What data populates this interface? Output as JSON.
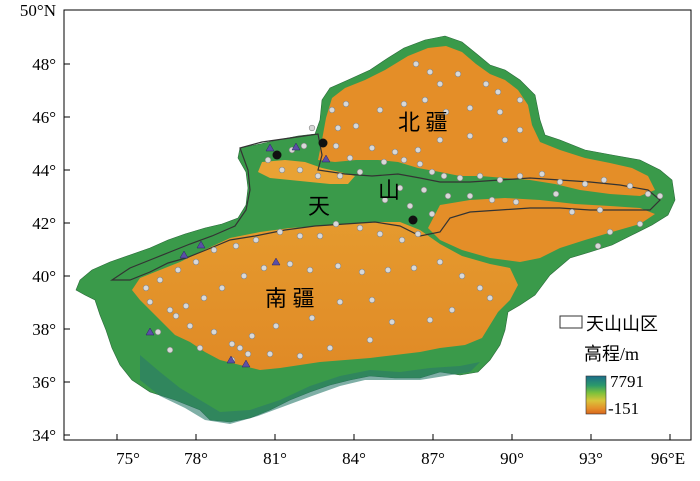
{
  "axes": {
    "lat_labels": [
      "50°N",
      "48°",
      "46°",
      "44°",
      "42°",
      "40°",
      "38°",
      "36°",
      "34°"
    ],
    "lon_labels": [
      "75°",
      "78°",
      "81°",
      "84°",
      "87°",
      "90°",
      "93°",
      "96°E"
    ],
    "lon_range": [
      73,
      96.6
    ],
    "lat_range": [
      33.5,
      50
    ]
  },
  "region_labels": {
    "north": "北 疆",
    "tian": "天",
    "shan": "山",
    "south": "南 疆"
  },
  "legend": {
    "boundary_label": "天山山区",
    "elevation_title": "高程/m",
    "max_label": "7791",
    "min_label": "-151",
    "ramp_colors": [
      "#1b7a8a",
      "#2c9a6a",
      "#6cbf3a",
      "#d8c23a",
      "#e0902c",
      "#d8661c"
    ]
  },
  "colors": {
    "land_low": "#e08a26",
    "land_high": "#2f8a4a",
    "marker_circle": "#d8d8d8",
    "marker_dot": "#111111",
    "marker_triangle": "#5b4fa6"
  }
}
